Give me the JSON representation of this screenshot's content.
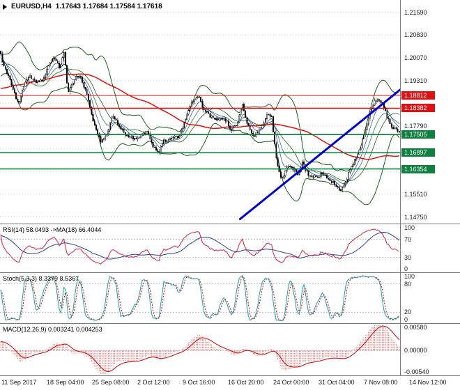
{
  "colors": {
    "background": "#ffffff",
    "border": "#7a7a7a",
    "grid": "#c8c8c8",
    "candle_outline": "#000000",
    "bull_fill": "#ffffff",
    "bear_fill": "#000000",
    "level_gray": "#b8b8b8",
    "axis_text": "#1a1a1a"
  },
  "header": {
    "symbol_label": "EURUSD,H4",
    "ohlc_display": "1.17643 1.17684 1.17584 1.17618"
  },
  "chart_data": [
    {
      "type": "candlestick",
      "symbol": "EURUSD",
      "timeframe": "H4",
      "ohlc_current": {
        "open": 1.17643,
        "high": 1.17684,
        "low": 1.17584,
        "close": 1.17618
      },
      "ylim": [
        1.1453,
        1.22
      ],
      "grid_prices": [
        1.2159,
        1.2083,
        1.2007,
        1.1931,
        1.1855,
        1.1779,
        1.1703,
        1.1627,
        1.1551,
        1.1475
      ],
      "y_ticks": [
        1.2159,
        1.2083,
        1.2007,
        1.1931,
        1.1779,
        1.1551,
        1.1475
      ],
      "y_tick_labels": [
        "1.21590",
        "1.20830",
        "1.20070",
        "1.19310",
        "1.17790",
        "1.15510",
        "1.14750"
      ],
      "price_label_boxes": [
        {
          "value": "1.18812",
          "price": 1.18812,
          "color": "#dd1111",
          "type": "resistance"
        },
        {
          "value": "1.18382",
          "price": 1.18382,
          "color": "#dd1111",
          "type": "resistance"
        },
        {
          "value": "1.17505",
          "price": 1.17505,
          "color": "#0e8040",
          "type": "support"
        },
        {
          "value": "1.16897",
          "price": 1.16897,
          "color": "#0e8040",
          "type": "support"
        },
        {
          "value": "1.16354",
          "price": 1.16354,
          "color": "#0e8040",
          "type": "support"
        }
      ],
      "horizontal_lines": [
        {
          "price": 1.18812,
          "color": "#dd1111",
          "width": 1
        },
        {
          "price": 1.18382,
          "color": "#dd1111",
          "width": 1.6
        },
        {
          "price": 1.17505,
          "color": "#0e8040",
          "width": 1.6
        },
        {
          "price": 1.16897,
          "color": "#0e8040",
          "width": 1.6
        },
        {
          "price": 1.16354,
          "color": "#0e8040",
          "width": 1.6
        }
      ],
      "trendline": {
        "x1": 0.6,
        "price1": 1.1468,
        "x2": 1.0,
        "price2": 1.19,
        "color": "#0000cc",
        "width": 3
      },
      "overlays": {
        "bollinger": {
          "period": 20,
          "deviation": 2,
          "color": "#1e5c1e"
        },
        "ma_long": {
          "period": 80,
          "color": "#dd1111"
        },
        "emas": [
          {
            "period": 7,
            "color": "#3a55c0"
          },
          {
            "period": 14,
            "color": "#2f7a50"
          }
        ]
      },
      "candle_count": 260,
      "noise_seed": 12,
      "price_path_anchors": [
        [
          0.0,
          1.203
        ],
        [
          0.01,
          1.1988
        ],
        [
          0.022,
          1.1945
        ],
        [
          0.035,
          1.1902
        ],
        [
          0.048,
          1.185
        ],
        [
          0.06,
          1.1912
        ],
        [
          0.075,
          1.195
        ],
        [
          0.09,
          1.1928
        ],
        [
          0.113,
          1.1938
        ],
        [
          0.126,
          1.1992
        ],
        [
          0.14,
          1.2008
        ],
        [
          0.152,
          1.1968
        ],
        [
          0.162,
          1.2028
        ],
        [
          0.172,
          1.1885
        ],
        [
          0.186,
          1.1932
        ],
        [
          0.2,
          1.195
        ],
        [
          0.215,
          1.1905
        ],
        [
          0.226,
          1.1845
        ],
        [
          0.24,
          1.1768
        ],
        [
          0.255,
          1.1722
        ],
        [
          0.268,
          1.175
        ],
        [
          0.282,
          1.1812
        ],
        [
          0.3,
          1.178
        ],
        [
          0.318,
          1.1748
        ],
        [
          0.34,
          1.1732
        ],
        [
          0.356,
          1.175
        ],
        [
          0.37,
          1.1762
        ],
        [
          0.385,
          1.1712
        ],
        [
          0.398,
          1.169
        ],
        [
          0.412,
          1.1732
        ],
        [
          0.432,
          1.174
        ],
        [
          0.453,
          1.175
        ],
        [
          0.468,
          1.1814
        ],
        [
          0.484,
          1.1862
        ],
        [
          0.498,
          1.188
        ],
        [
          0.512,
          1.1832
        ],
        [
          0.532,
          1.1808
        ],
        [
          0.566,
          1.1796
        ],
        [
          0.58,
          1.1768
        ],
        [
          0.594,
          1.178
        ],
        [
          0.607,
          1.1856
        ],
        [
          0.621,
          1.1782
        ],
        [
          0.636,
          1.1748
        ],
        [
          0.652,
          1.1764
        ],
        [
          0.667,
          1.1812
        ],
        [
          0.68,
          1.1816
        ],
        [
          0.694,
          1.165
        ],
        [
          0.706,
          1.1592
        ],
        [
          0.718,
          1.1645
        ],
        [
          0.732,
          1.164
        ],
        [
          0.746,
          1.1618
        ],
        [
          0.758,
          1.166
        ],
        [
          0.772,
          1.1615
        ],
        [
          0.793,
          1.1606
        ],
        [
          0.808,
          1.1622
        ],
        [
          0.822,
          1.16
        ],
        [
          0.838,
          1.1585
        ],
        [
          0.855,
          1.1562
        ],
        [
          0.868,
          1.1595
        ],
        [
          0.88,
          1.1648
        ],
        [
          0.892,
          1.1668
        ],
        [
          0.902,
          1.17
        ],
        [
          0.914,
          1.1762
        ],
        [
          0.926,
          1.1822
        ],
        [
          0.938,
          1.1858
        ],
        [
          0.95,
          1.187
        ],
        [
          0.96,
          1.1845
        ],
        [
          0.972,
          1.18
        ],
        [
          0.984,
          1.177
        ],
        [
          1.0,
          1.1762
        ]
      ]
    },
    {
      "type": "line",
      "name": "RSI",
      "label": "RSI(14) 58.0493 ->MA(18) 66.4044",
      "period": 14,
      "ma_period": 18,
      "current": 58.0493,
      "ma_current": 66.4044,
      "ylim": [
        0,
        100
      ],
      "y_ticks": [
        100,
        70,
        30,
        0
      ],
      "y_tick_labels": [
        "100",
        "70",
        "30",
        "0"
      ],
      "level_lines": [
        70,
        30
      ],
      "line_color": "#cc2244",
      "ma_color": "#2b3f8f"
    },
    {
      "type": "line",
      "name": "Stochastic",
      "label": "Stoch(5,3,3) 8.3379 8.5367",
      "k_period": 5,
      "d_period": 3,
      "slowing": 3,
      "current_k": 8.3379,
      "current_d": 8.5367,
      "ylim": [
        0,
        100
      ],
      "y_ticks": [
        100,
        80,
        20,
        0
      ],
      "y_tick_labels": [
        "100",
        "80",
        "20",
        "0"
      ],
      "level_lines": [
        80,
        20
      ],
      "k_color": "#20a0a0",
      "d_color": "#cc0000"
    },
    {
      "type": "macd",
      "name": "MACD",
      "label": "MACD(12,26,9) 0.003241 0.004253",
      "fast": 12,
      "slow": 26,
      "signal_period": 9,
      "current_macd": 0.003241,
      "current_signal": 0.004253,
      "ylim": [
        -0.0054,
        0.0058
      ],
      "y_ticks": [
        0.0058,
        0,
        -0.0054
      ],
      "y_tick_labels": [
        "0.00580",
        "0.00000",
        "-0.00540"
      ],
      "hist_color": "#e07a7a",
      "signal_color": "#cc0000"
    }
  ],
  "time_axis": {
    "labels": [
      "11 Sep 2017",
      "18 Sep 04:00",
      "25 Sep 08:00",
      "2 Oct 12:00",
      "9 Oct 16:00",
      "16 Oct 20:00",
      "24 Oct 00:00",
      "31 Oct 04:00",
      "7 Nov 08:00",
      "14 Nov 12:00"
    ]
  }
}
